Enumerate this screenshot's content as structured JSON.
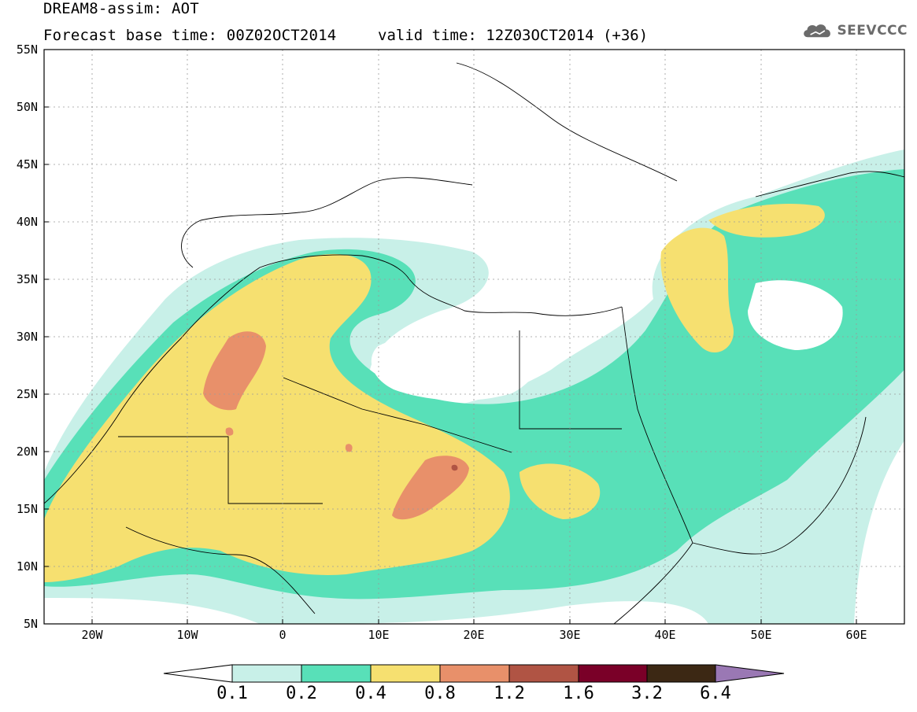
{
  "header": {
    "line1": "DREAM8-assim: AOT",
    "line2": "Forecast base time: 00Z02OCT2014",
    "valid": "valid time: 12Z03OCT2014 (+36)"
  },
  "logo": {
    "text": "SEEVCCC",
    "icon": "cloud-icon"
  },
  "map": {
    "lon_range": [
      -25,
      65
    ],
    "lat_range": [
      5,
      55
    ],
    "lat_ticks": [
      "5N",
      "10N",
      "15N",
      "20N",
      "25N",
      "30N",
      "35N",
      "40N",
      "45N",
      "50N",
      "55N"
    ],
    "lon_ticks": [
      "20W",
      "10W",
      "0",
      "10E",
      "20E",
      "30E",
      "40E",
      "50E",
      "60E"
    ]
  },
  "colorbar": {
    "levels": [
      "0.1",
      "0.2",
      "0.4",
      "0.8",
      "1.2",
      "1.6",
      "3.2",
      "6.4"
    ],
    "colors": [
      "#c8f0e8",
      "#58e0b8",
      "#f6e070",
      "#e8906a",
      "#b05444",
      "#7a0028",
      "#3c2814",
      "#9a78b4"
    ],
    "low_end_color": "#ffffff"
  }
}
